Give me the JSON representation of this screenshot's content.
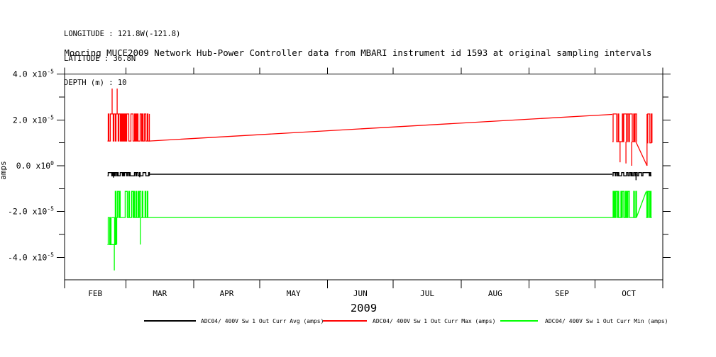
{
  "header": {
    "longitude": "LONGITUDE : 121.8W(-121.8)",
    "latitude": "LATITUDE : 36.8N",
    "depth": "DEPTH (m) : 10"
  },
  "chart_data": {
    "type": "line",
    "title": "Mooring MUCE2009 Network Hub-Power Controller data from MBARI instrument id 1593 at original sampling intervals",
    "ylabel": "amps",
    "xlabel_year": "2009",
    "legend_position": "bottom",
    "grid": false,
    "x_axis": {
      "unit": "months of 2009, Feb 1 through Nov 1",
      "months": [
        "FEB",
        "MAR",
        "APR",
        "MAY",
        "JUN",
        "JUL",
        "AUG",
        "SEP",
        "OCT"
      ],
      "month_boundary_days": [
        0,
        28,
        59,
        89,
        120,
        150,
        181,
        212,
        242,
        273
      ]
    },
    "y_axis": {
      "unit": "amps",
      "major_ticks": [
        {
          "mantissa": "4.0",
          "exponent": "-5",
          "value": 4e-05
        },
        {
          "mantissa": "2.0",
          "exponent": "-5",
          "value": 2e-05
        },
        {
          "mantissa": "0.0",
          "exponent": "0",
          "value": 0.0
        },
        {
          "mantissa": "-2.0",
          "exponent": "-5",
          "value": -2e-05
        },
        {
          "mantissa": "-4.0",
          "exponent": "-5",
          "value": -4e-05
        }
      ],
      "minor_tick_values": [
        3e-05,
        1e-05,
        -1e-05,
        -3e-05
      ],
      "top_value": 4e-05,
      "bottom_value": -4.98e-05
    },
    "data_coverage": {
      "burst1_days": "Feb 20 - Mar 10 (noisy data)",
      "gap_days": "Mar 10 - Oct 8 (straight interpolation line)",
      "burst2_days": "Oct 8 - Oct 26 (noisy data)"
    },
    "series": [
      {
        "name": "ADC04/ 400V Sw 1 Out Curr Avg (amps)",
        "short": "avg",
        "color": "#000000",
        "width": 1.4,
        "segments": [
          {
            "kind": "burst",
            "d0": 19.6,
            "d1": 38.6,
            "hi": -3e-06,
            "lo": -4.4e-06,
            "seed": 5,
            "swUp": 0.5,
            "swDown": 0.5
          },
          {
            "kind": "line",
            "points": [
              [
                38.6,
                -3.7e-06
              ],
              [
                250,
                -3.7e-06
              ]
            ]
          },
          {
            "kind": "burst",
            "d0": 250,
            "d1": 267.8,
            "hi": -3e-06,
            "lo": -4.4e-06,
            "seed": 6,
            "swUp": 0.5,
            "swDown": 0.5
          }
        ],
        "spikes": [
          [
            22.3,
            -3.7e-06,
            -5.2e-06
          ],
          [
            34.3,
            -3.7e-06,
            -5e-06
          ],
          [
            260.8,
            -3.7e-06,
            -6.3e-06
          ]
        ]
      },
      {
        "name": "ADC04/ 400V Sw 1 Out Curr Max (amps)",
        "short": "max",
        "color": "#ff0000",
        "width": 1.3,
        "segments": [
          {
            "kind": "burst",
            "d0": 19.6,
            "d1": 38.6,
            "hi": 2.26e-05,
            "lo": 1.08e-05,
            "seed": 2,
            "swUp": 0.7,
            "swDown": 0.55
          },
          {
            "kind": "line",
            "points": [
              [
                38.6,
                1.08e-05
              ],
              [
                250,
                2.24e-05
              ]
            ]
          },
          {
            "kind": "burst",
            "d0": 250,
            "d1": 260.7,
            "hi": 2.26e-05,
            "lo": 1.05e-05,
            "seed": 3,
            "swUp": 0.6,
            "swDown": 0.5
          },
          {
            "kind": "line",
            "points": [
              [
                260.7,
                1.05e-05
              ],
              [
                265.8,
                0.0
              ]
            ]
          },
          {
            "kind": "line",
            "points": [
              [
                265.8,
                0.0
              ],
              [
                265.8,
                2.26e-05
              ]
            ]
          },
          {
            "kind": "burst",
            "d0": 265.8,
            "d1": 267.8,
            "hi": 2.26e-05,
            "lo": 1e-05,
            "seed": 4,
            "swUp": 0.6,
            "swDown": 0.5
          }
        ],
        "spikes": [
          [
            21.7,
            2.26e-05,
            3.37e-05
          ],
          [
            24.0,
            2.26e-05,
            3.37e-05
          ],
          [
            253.5,
            1.05e-05,
            1.5e-06
          ],
          [
            256.2,
            1.05e-05,
            1e-06
          ],
          [
            258.8,
            1.05e-05,
            0.0
          ]
        ]
      },
      {
        "name": "ADC04/ 400V Sw 1 Out Curr Min (amps)",
        "short": "min",
        "color": "#00ff00",
        "width": 1.3,
        "segments": [
          {
            "kind": "burst",
            "d0": 19.6,
            "d1": 23.8,
            "hi": -2.26e-05,
            "lo": -3.44e-05,
            "seed": 7,
            "swUp": 0.6,
            "swDown": 0.6
          },
          {
            "kind": "burst",
            "d0": 21.5,
            "d1": 38.6,
            "hi": -1.12e-05,
            "lo": -2.26e-05,
            "seed": 8,
            "swUp": 0.35,
            "swDown": 0.8
          },
          {
            "kind": "line",
            "points": [
              [
                38.6,
                -2.26e-05
              ],
              [
                250,
                -2.26e-05
              ]
            ]
          },
          {
            "kind": "burst",
            "d0": 250,
            "d1": 261,
            "hi": -1.12e-05,
            "lo": -2.26e-05,
            "seed": 9,
            "swUp": 0.55,
            "swDown": 0.6
          },
          {
            "kind": "line",
            "points": [
              [
                261,
                -2.26e-05
              ],
              [
                265.4,
                -1.13e-05
              ]
            ]
          },
          {
            "kind": "burst",
            "d0": 265.4,
            "d1": 267.8,
            "hi": -1.12e-05,
            "lo": -2.26e-05,
            "seed": 10,
            "swUp": 0.55,
            "swDown": 0.6
          }
        ],
        "spikes": [
          [
            22.7,
            -3.44e-05,
            -4.57e-05
          ],
          [
            34.6,
            -2.26e-05,
            -3.44e-05
          ]
        ]
      }
    ]
  }
}
